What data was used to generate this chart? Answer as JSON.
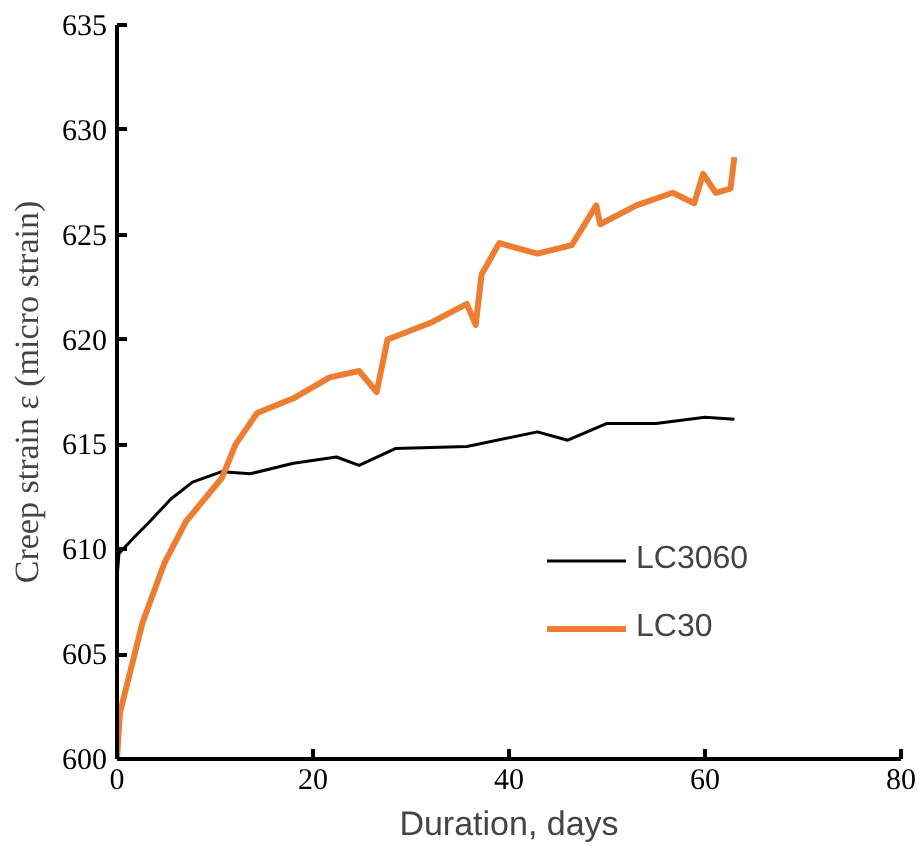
{
  "chart_data": {
    "type": "line",
    "xlabel": "Duration, days",
    "ylabel": "Creep strain ε (micro strain)",
    "xlim": [
      0,
      80
    ],
    "xticks": [
      0,
      20,
      40,
      60,
      80
    ],
    "ylim": [
      600,
      635
    ],
    "yticks": [
      600,
      605,
      610,
      615,
      620,
      625,
      630,
      635
    ],
    "grid": false,
    "legend": "right",
    "marker": "none",
    "line_style": "solid",
    "series": [
      {
        "name": "LC3060",
        "color": "#000000",
        "x": [
          0,
          0.2,
          1.8,
          3.3,
          5.5,
          7.7,
          10.7,
          13.6,
          18,
          22.4,
          24.7,
          28.4,
          35.7,
          42.9,
          46,
          50,
          55,
          60,
          63
        ],
        "values": [
          608.6,
          609.8,
          610.6,
          611.3,
          612.4,
          613.2,
          613.7,
          613.6,
          614.1,
          614.4,
          614.0,
          614.8,
          614.9,
          615.6,
          615.2,
          616.0,
          616.0,
          616.3,
          616.2
        ]
      },
      {
        "name": "LC30",
        "color": "#ed7d31",
        "x": [
          0,
          0.3,
          2.6,
          4.8,
          7.0,
          10.7,
          12.1,
          14.3,
          18.0,
          21.7,
          24.7,
          26.5,
          27.6,
          32,
          35.7,
          36.6,
          37.2,
          39.0,
          42.9,
          46.4,
          48.9,
          49.3,
          53,
          56.7,
          58.9,
          59.8,
          61.1,
          62.6,
          63.0
        ],
        "values": [
          600,
          602.2,
          606.5,
          609.3,
          611.3,
          613.4,
          615.0,
          616.5,
          617.2,
          618.2,
          618.5,
          617.5,
          620.0,
          620.8,
          621.7,
          620.7,
          623.1,
          624.6,
          624.1,
          624.5,
          626.4,
          625.5,
          626.4,
          627.0,
          626.5,
          627.9,
          627.0,
          627.2,
          628.7
        ]
      }
    ]
  }
}
